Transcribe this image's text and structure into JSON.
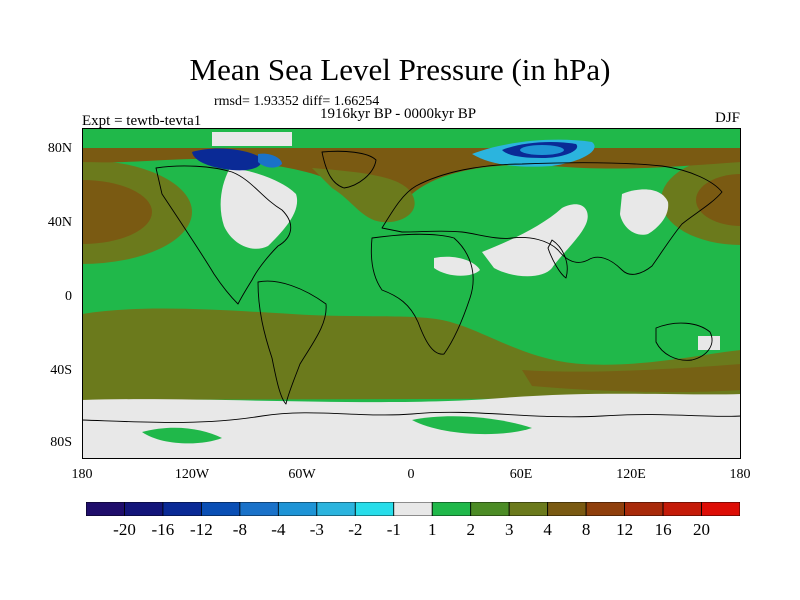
{
  "title": "Mean Sea Level Pressure (in hPa)",
  "stats": "rmsd= 1.93352 diff= 1.66254",
  "period": "1916kyr BP - 0000kyr BP",
  "experiment": "Expt = tewtb-tevta1",
  "season": "DJF",
  "map": {
    "projection": "cylindrical equidistant",
    "lat_ticks": [
      "80N",
      "40N",
      "0",
      "40S",
      "80S"
    ],
    "lon_ticks": [
      "180",
      "120W",
      "60W",
      "0",
      "60E",
      "120E",
      "180"
    ]
  },
  "colorbar": {
    "labels": [
      "-20",
      "-16",
      "-12",
      "-8",
      "-4",
      "-3",
      "-2",
      "-1",
      "1",
      "2",
      "3",
      "4",
      "8",
      "12",
      "16",
      "20"
    ],
    "colors": [
      "#1f0d6b",
      "#13157a",
      "#0a2a96",
      "#0a4fb5",
      "#1a72c9",
      "#1e94d6",
      "#2bb4de",
      "#27ddea",
      "#e8e8e8",
      "#20b84a",
      "#4c8c26",
      "#6b7a1c",
      "#7a5a12",
      "#8f3f0c",
      "#a82a0a",
      "#c41a08",
      "#dd0d06"
    ]
  },
  "colors": {
    "green": "#20b84a",
    "olive": "#6b7a1c",
    "brown": "#7a5a12",
    "neutral": "#e8e8e8",
    "deep_blue": "#0a2a96",
    "cyan": "#2bb4de"
  }
}
